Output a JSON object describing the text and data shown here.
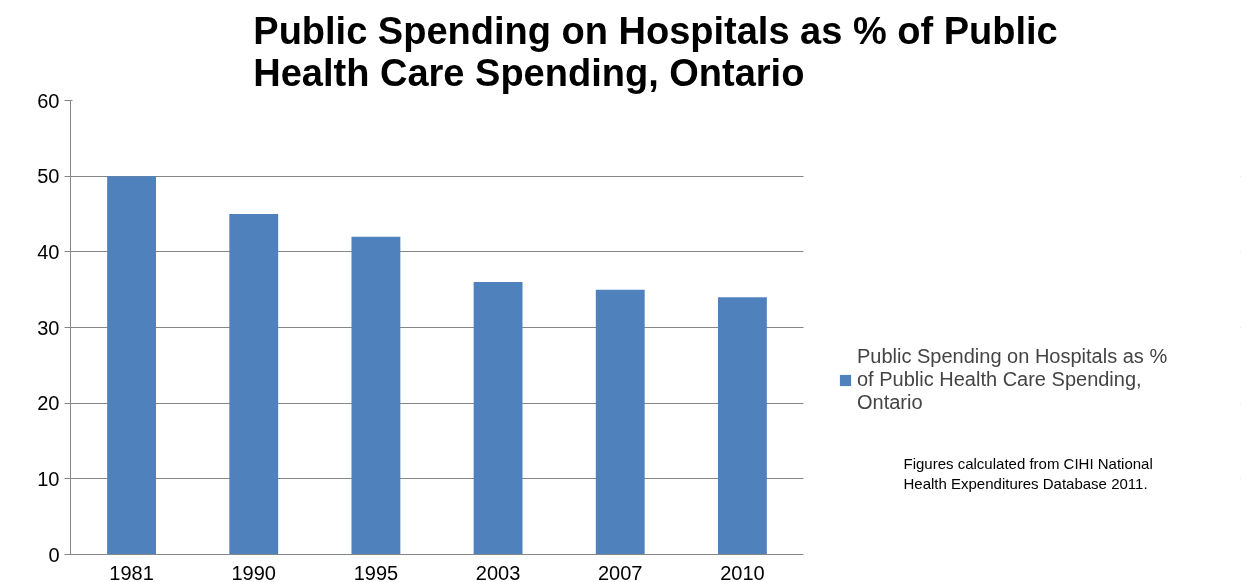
{
  "chart_data": {
    "type": "bar",
    "title": "Public Spending on Hospitals as % of Public Health Care Spending, Ontario",
    "categories": [
      "1981",
      "1990",
      "1995",
      "2003",
      "2007",
      "2010"
    ],
    "series": [
      {
        "name": "Public Spending on Hospitals as % of Public Health Care Spending, Ontario",
        "color": "#4f81bd",
        "values": [
          50,
          45,
          42,
          36,
          35,
          34
        ]
      }
    ],
    "ylim": [
      0,
      60
    ],
    "yticks": [
      0,
      10,
      20,
      30,
      40,
      50,
      60
    ],
    "grid": "y",
    "legend": "right",
    "annotations": [
      "Figures calculated from CIHI National Health Expenditures Database 2011."
    ]
  }
}
